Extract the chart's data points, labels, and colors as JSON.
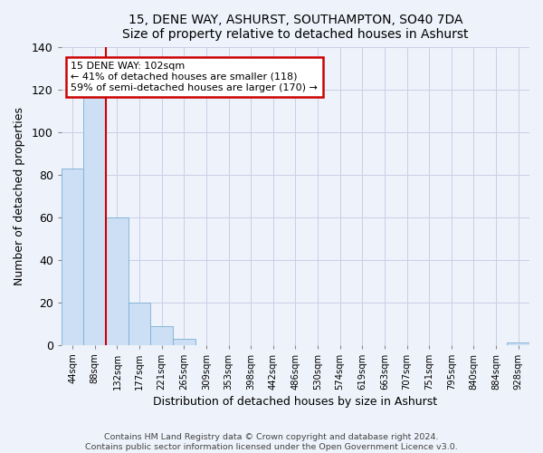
{
  "title": "15, DENE WAY, ASHURST, SOUTHAMPTON, SO40 7DA",
  "subtitle": "Size of property relative to detached houses in Ashurst",
  "xlabel": "Distribution of detached houses by size in Ashurst",
  "ylabel": "Number of detached properties",
  "bin_labels": [
    "44sqm",
    "88sqm",
    "132sqm",
    "177sqm",
    "221sqm",
    "265sqm",
    "309sqm",
    "353sqm",
    "398sqm",
    "442sqm",
    "486sqm",
    "530sqm",
    "574sqm",
    "619sqm",
    "663sqm",
    "707sqm",
    "751sqm",
    "795sqm",
    "840sqm",
    "884sqm",
    "928sqm"
  ],
  "bar_values": [
    83,
    118,
    60,
    20,
    9,
    3,
    0,
    0,
    0,
    0,
    0,
    0,
    0,
    0,
    0,
    0,
    0,
    0,
    0,
    0,
    1
  ],
  "bar_color": "#ccdff5",
  "bar_edge_color": "#7bafd4",
  "vline_x_index": 1.5,
  "vline_color": "#cc0000",
  "annotation_line1": "15 DENE WAY: 102sqm",
  "annotation_line2": "← 41% of detached houses are smaller (118)",
  "annotation_line3": "59% of semi-detached houses are larger (170) →",
  "annotation_box_color": "#cc0000",
  "annotation_bg": "#ffffff",
  "ylim": [
    0,
    140
  ],
  "yticks": [
    0,
    20,
    40,
    60,
    80,
    100,
    120,
    140
  ],
  "footer_line1": "Contains HM Land Registry data © Crown copyright and database right 2024.",
  "footer_line2": "Contains public sector information licensed under the Open Government Licence v3.0.",
  "bg_color": "#eef2fa",
  "grid_color": "#c8cfe8"
}
